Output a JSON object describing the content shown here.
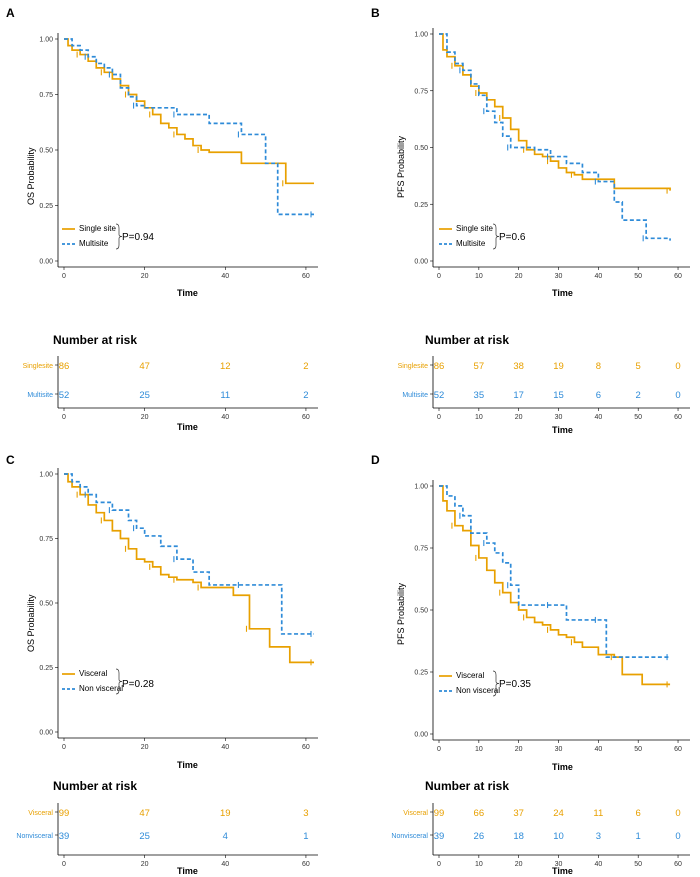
{
  "chart_data": [
    {
      "panel": "A",
      "type": "line",
      "subtype": "kaplan-meier",
      "ylabel": "OS Probability",
      "xlabel": "Time",
      "xlim": [
        0,
        62
      ],
      "ylim": [
        0,
        1
      ],
      "xticks": [
        0,
        20,
        40,
        60
      ],
      "yticks": [
        "0.00",
        "0.25",
        "0.50",
        "0.75",
        "1.00"
      ],
      "pvalue": "P=0.94",
      "series": [
        {
          "name": "Single site",
          "color": "#E8A000",
          "style": "solid",
          "x": [
            0,
            1,
            2,
            4,
            6,
            8,
            10,
            12,
            14,
            16,
            18,
            20,
            22,
            24,
            26,
            28,
            30,
            32,
            34,
            36,
            44,
            55,
            62
          ],
          "y": [
            1.0,
            0.97,
            0.95,
            0.93,
            0.9,
            0.87,
            0.85,
            0.82,
            0.79,
            0.75,
            0.72,
            0.69,
            0.66,
            0.62,
            0.6,
            0.57,
            0.55,
            0.52,
            0.5,
            0.49,
            0.44,
            0.35,
            0.35
          ]
        },
        {
          "name": "Multisite",
          "color": "#2E8BD8",
          "style": "dashed",
          "x": [
            0,
            2,
            4,
            6,
            8,
            10,
            12,
            14,
            16,
            18,
            20,
            24,
            28,
            32,
            36,
            44,
            50,
            53,
            62
          ],
          "y": [
            1.0,
            0.97,
            0.95,
            0.92,
            0.89,
            0.87,
            0.84,
            0.78,
            0.74,
            0.7,
            0.69,
            0.69,
            0.66,
            0.66,
            0.62,
            0.57,
            0.44,
            0.21,
            0.21
          ]
        }
      ],
      "risk_table": {
        "title": "Number at risk",
        "xlabel": "Time",
        "times": [
          0,
          20,
          40,
          60
        ],
        "rows": [
          {
            "label": "Singlesite",
            "color": "#E8A000",
            "values": [
              "86",
              "47",
              "12",
              "2"
            ]
          },
          {
            "label": "Multisite",
            "color": "#2E8BD8",
            "values": [
              "52",
              "25",
              "11",
              "2"
            ]
          }
        ]
      }
    },
    {
      "panel": "B",
      "type": "line",
      "subtype": "kaplan-meier",
      "ylabel": "PFS Probability",
      "xlabel": "Time",
      "xlim": [
        0,
        62
      ],
      "ylim": [
        0,
        1
      ],
      "xticks": [
        0,
        10,
        20,
        30,
        40,
        50,
        60
      ],
      "yticks": [
        "0.00",
        "0.25",
        "0.50",
        "0.75",
        "1.00"
      ],
      "pvalue": "P=0.6",
      "series": [
        {
          "name": "Single site",
          "color": "#E8A000",
          "style": "solid",
          "x": [
            0,
            1,
            2,
            4,
            6,
            8,
            10,
            12,
            14,
            16,
            18,
            20,
            22,
            24,
            26,
            28,
            30,
            32,
            34,
            36,
            44,
            58
          ],
          "y": [
            1.0,
            0.93,
            0.9,
            0.86,
            0.82,
            0.77,
            0.74,
            0.71,
            0.68,
            0.63,
            0.58,
            0.53,
            0.49,
            0.47,
            0.46,
            0.44,
            0.41,
            0.39,
            0.38,
            0.36,
            0.32,
            0.31
          ]
        },
        {
          "name": "Multisite",
          "color": "#2E8BD8",
          "style": "dashed",
          "x": [
            0,
            2,
            4,
            6,
            8,
            10,
            12,
            14,
            16,
            18,
            20,
            24,
            28,
            32,
            36,
            40,
            44,
            46,
            52,
            58
          ],
          "y": [
            1.0,
            0.92,
            0.87,
            0.84,
            0.78,
            0.73,
            0.66,
            0.61,
            0.55,
            0.5,
            0.5,
            0.49,
            0.46,
            0.43,
            0.39,
            0.35,
            0.26,
            0.18,
            0.1,
            0.09
          ]
        }
      ],
      "risk_table": {
        "title": "Number at risk",
        "xlabel": "Time",
        "times": [
          0,
          10,
          20,
          30,
          40,
          50,
          60
        ],
        "rows": [
          {
            "label": "Singlesite",
            "color": "#E8A000",
            "values": [
              "86",
              "57",
              "38",
              "19",
              "8",
              "5",
              "0"
            ]
          },
          {
            "label": "Multisite",
            "color": "#2E8BD8",
            "values": [
              "52",
              "35",
              "17",
              "15",
              "6",
              "2",
              "0"
            ]
          }
        ]
      }
    },
    {
      "panel": "C",
      "type": "line",
      "subtype": "kaplan-meier",
      "ylabel": "OS Probability",
      "xlabel": "Time",
      "xlim": [
        0,
        62
      ],
      "ylim": [
        0,
        1
      ],
      "xticks": [
        0,
        20,
        40,
        60
      ],
      "yticks": [
        "0.00",
        "0.25",
        "0.50",
        "0.75",
        "1.00"
      ],
      "pvalue": "P=0.28",
      "series": [
        {
          "name": "Visceral",
          "color": "#E8A000",
          "style": "solid",
          "x": [
            0,
            1,
            2,
            4,
            6,
            8,
            10,
            12,
            14,
            16,
            18,
            20,
            22,
            24,
            26,
            28,
            30,
            32,
            34,
            38,
            42,
            46,
            51,
            56,
            62
          ],
          "y": [
            1.0,
            0.97,
            0.95,
            0.92,
            0.88,
            0.85,
            0.82,
            0.78,
            0.75,
            0.71,
            0.67,
            0.66,
            0.64,
            0.61,
            0.6,
            0.59,
            0.59,
            0.58,
            0.56,
            0.56,
            0.53,
            0.4,
            0.33,
            0.27,
            0.27
          ]
        },
        {
          "name": "Non visceral",
          "color": "#2E8BD8",
          "style": "dashed",
          "x": [
            0,
            2,
            4,
            6,
            8,
            10,
            12,
            14,
            16,
            18,
            20,
            24,
            28,
            32,
            36,
            44,
            52,
            54,
            62
          ],
          "y": [
            1.0,
            0.97,
            0.95,
            0.92,
            0.89,
            0.89,
            0.86,
            0.86,
            0.82,
            0.79,
            0.76,
            0.72,
            0.67,
            0.62,
            0.57,
            0.57,
            0.57,
            0.38,
            0.38
          ]
        }
      ],
      "risk_table": {
        "title": "Number at risk",
        "xlabel": "Time",
        "times": [
          0,
          20,
          40,
          60
        ],
        "rows": [
          {
            "label": "Visceral",
            "color": "#E8A000",
            "values": [
              "99",
              "47",
              "19",
              "3"
            ]
          },
          {
            "label": "Nonvisceral",
            "color": "#2E8BD8",
            "values": [
              "39",
              "25",
              "4",
              "1"
            ]
          }
        ]
      }
    },
    {
      "panel": "D",
      "type": "line",
      "subtype": "kaplan-meier",
      "ylabel": "PFS Probability",
      "xlabel": "Time",
      "xlim": [
        0,
        62
      ],
      "ylim": [
        0,
        1
      ],
      "xticks": [
        0,
        10,
        20,
        30,
        40,
        50,
        60
      ],
      "yticks": [
        "0.00",
        "0.25",
        "0.50",
        "0.75",
        "1.00"
      ],
      "pvalue": "P=0.35",
      "series": [
        {
          "name": "Visceral",
          "color": "#E8A000",
          "style": "solid",
          "x": [
            0,
            1,
            2,
            4,
            6,
            8,
            10,
            12,
            14,
            16,
            18,
            20,
            22,
            24,
            26,
            28,
            30,
            32,
            34,
            36,
            40,
            44,
            46,
            51,
            58
          ],
          "y": [
            1.0,
            0.94,
            0.9,
            0.84,
            0.82,
            0.76,
            0.71,
            0.66,
            0.61,
            0.57,
            0.53,
            0.5,
            0.47,
            0.45,
            0.44,
            0.42,
            0.4,
            0.39,
            0.37,
            0.35,
            0.32,
            0.31,
            0.24,
            0.2,
            0.2
          ]
        },
        {
          "name": "Non visceral",
          "color": "#2E8BD8",
          "style": "dashed",
          "x": [
            0,
            2,
            4,
            6,
            8,
            10,
            12,
            14,
            16,
            18,
            20,
            24,
            28,
            32,
            36,
            40,
            42,
            46,
            58
          ],
          "y": [
            1.0,
            0.96,
            0.92,
            0.88,
            0.81,
            0.81,
            0.77,
            0.73,
            0.69,
            0.6,
            0.52,
            0.52,
            0.52,
            0.46,
            0.46,
            0.46,
            0.31,
            0.31,
            0.31
          ]
        }
      ],
      "risk_table": {
        "title": "Number at risk",
        "xlabel": "Time",
        "times": [
          0,
          10,
          20,
          30,
          40,
          50,
          60
        ],
        "rows": [
          {
            "label": "Visceral",
            "color": "#E8A000",
            "values": [
              "99",
              "66",
              "37",
              "24",
              "11",
              "6",
              "0"
            ]
          },
          {
            "label": "Nonvisceral",
            "color": "#2E8BD8",
            "values": [
              "39",
              "26",
              "18",
              "10",
              "3",
              "1",
              "0"
            ]
          }
        ]
      }
    }
  ]
}
